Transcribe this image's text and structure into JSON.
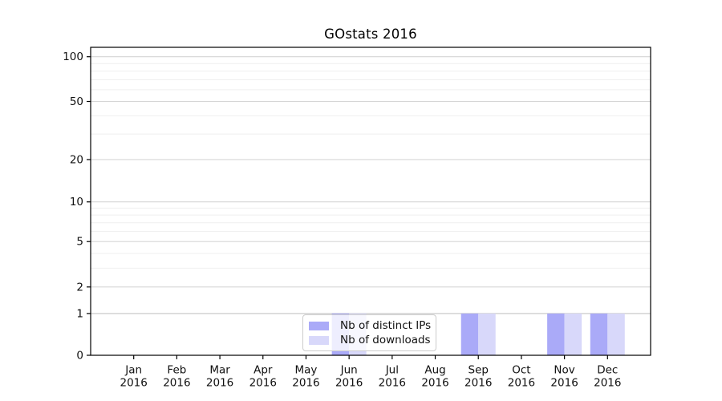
{
  "title": "GOstats 2016",
  "chart_data": {
    "type": "bar",
    "title": "GOstats 2016",
    "categories": [
      "Jan",
      "Feb",
      "Mar",
      "Apr",
      "May",
      "Jun",
      "Jul",
      "Aug",
      "Sep",
      "Oct",
      "Nov",
      "Dec"
    ],
    "x_year_label": "2016",
    "series": [
      {
        "name": "Nb of distinct IPs",
        "color": "#aaaaf8",
        "values": [
          0,
          0,
          0,
          0,
          0,
          1,
          0,
          0,
          1,
          0,
          1,
          1
        ]
      },
      {
        "name": "Nb of downloads",
        "color": "#d8d8fa",
        "values": [
          0,
          0,
          0,
          0,
          0,
          1,
          0,
          0,
          1,
          0,
          1,
          1
        ]
      }
    ],
    "yscale": "log1p",
    "ylim": [
      0,
      115
    ],
    "y_ticks": [
      0,
      1,
      2,
      5,
      10,
      20,
      50,
      100
    ],
    "y_minor_ticks": [
      3,
      4,
      6,
      7,
      8,
      9,
      30,
      40,
      60,
      70,
      80,
      90
    ],
    "grid": "horizontal",
    "legend_position": "lower-center",
    "colors": {
      "frame": "#000000",
      "major_grid": "#d6d6d6",
      "baseline_grid": "#c4c4c4",
      "minor_grid": "#efefef"
    }
  }
}
